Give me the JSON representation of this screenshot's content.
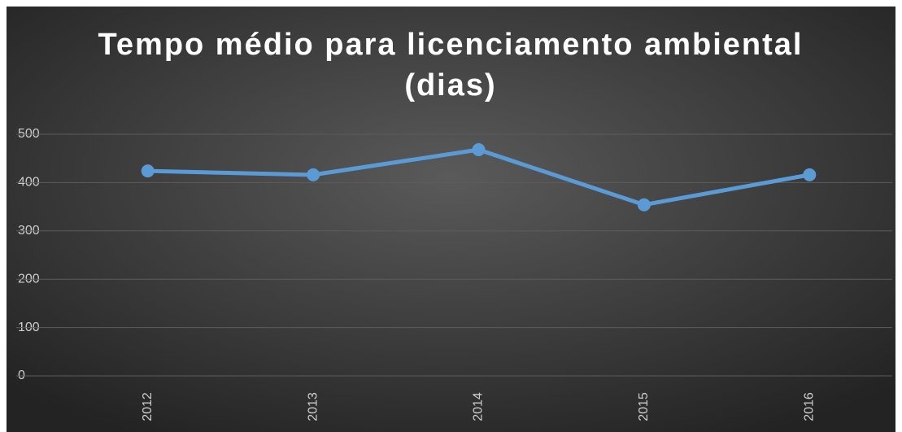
{
  "chart_data": {
    "type": "line",
    "title": "Tempo médio para licenciamento ambiental (dias)",
    "categories": [
      "2012",
      "2013",
      "2014",
      "2015",
      "2016"
    ],
    "series": [
      {
        "name": null,
        "color": "#5b9bd5",
        "values": [
          424,
          416,
          468,
          354,
          416
        ]
      }
    ],
    "ylim": [
      0,
      500
    ],
    "yticks": [
      0,
      100,
      200,
      300,
      400,
      500
    ],
    "grid": true
  }
}
